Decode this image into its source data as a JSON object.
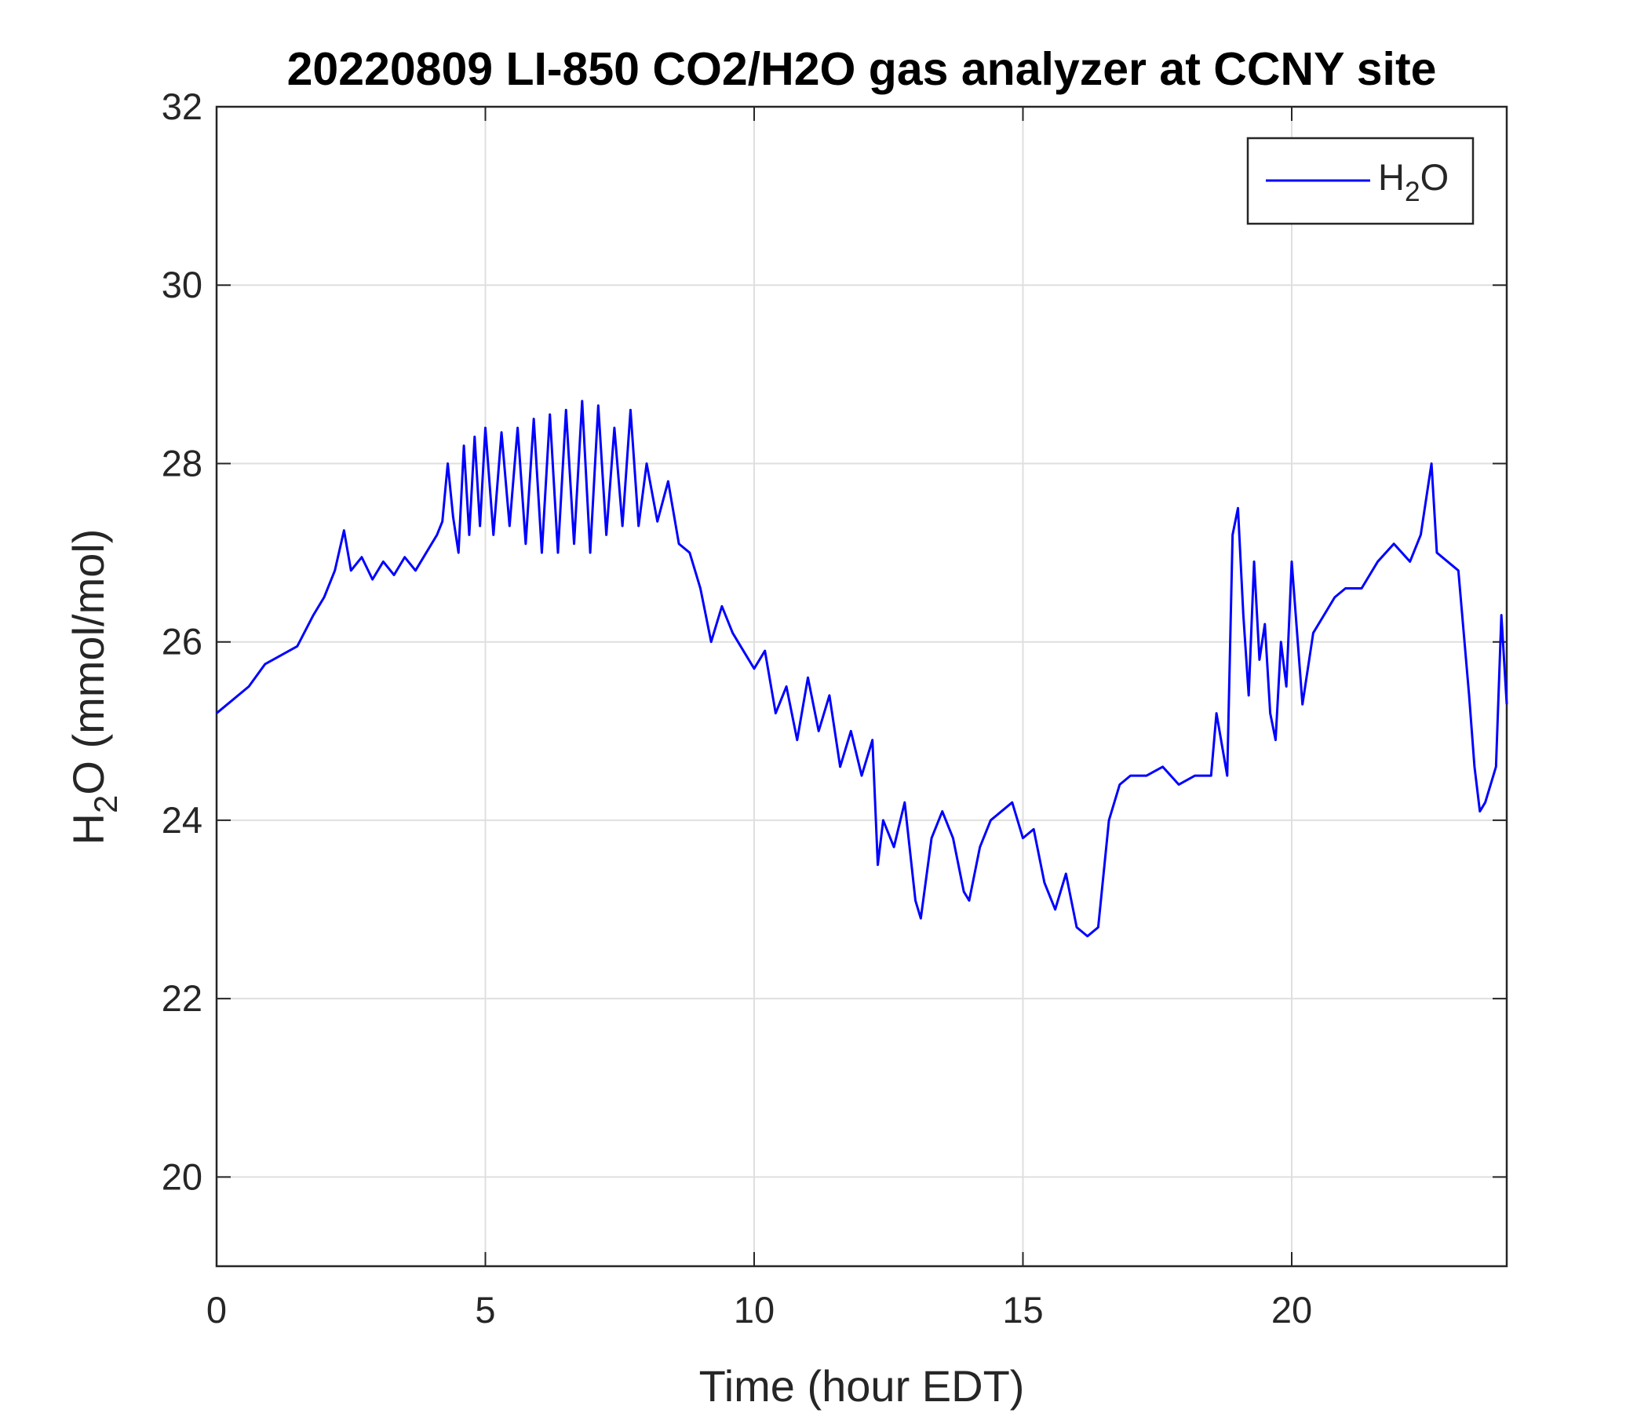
{
  "chart_data": {
    "type": "line",
    "title": "20220809 LI-850 CO2/H2O gas analyzer at CCNY site",
    "xlabel": "Time (hour EDT)",
    "ylabel": "H2O (mmol/mol)",
    "xlim": [
      0,
      24
    ],
    "xticks": [
      0,
      5,
      10,
      15,
      20
    ],
    "ylim": [
      19,
      32
    ],
    "yticks": [
      20,
      22,
      24,
      26,
      28,
      30,
      32
    ],
    "grid": true,
    "legend": "upper right",
    "x": [
      0,
      0.3,
      0.6,
      0.9,
      1.2,
      1.5,
      1.8,
      2.0,
      2.2,
      2.37,
      2.5,
      2.7,
      2.9,
      3.1,
      3.3,
      3.5,
      3.7,
      3.9,
      4.1,
      4.2,
      4.3,
      4.4,
      4.5,
      4.6,
      4.7,
      4.8,
      4.9,
      5.0,
      5.15,
      5.3,
      5.45,
      5.6,
      5.75,
      5.9,
      6.05,
      6.2,
      6.35,
      6.5,
      6.65,
      6.8,
      6.95,
      7.1,
      7.25,
      7.4,
      7.55,
      7.7,
      7.85,
      8.0,
      8.2,
      8.4,
      8.6,
      8.8,
      9.0,
      9.2,
      9.4,
      9.6,
      9.8,
      10.0,
      10.2,
      10.4,
      10.6,
      10.8,
      11.0,
      11.2,
      11.4,
      11.6,
      11.8,
      12.0,
      12.2,
      12.3,
      12.4,
      12.6,
      12.8,
      13.0,
      13.1,
      13.3,
      13.5,
      13.7,
      13.9,
      14.0,
      14.2,
      14.4,
      14.6,
      14.8,
      15.0,
      15.2,
      15.4,
      15.6,
      15.8,
      16.0,
      16.2,
      16.4,
      16.6,
      16.8,
      17.0,
      17.3,
      17.6,
      17.9,
      18.2,
      18.5,
      18.6,
      18.8,
      18.9,
      19.0,
      19.1,
      19.2,
      19.3,
      19.4,
      19.5,
      19.6,
      19.7,
      19.8,
      19.9,
      20.0,
      20.2,
      20.4,
      20.6,
      20.8,
      21.0,
      21.3,
      21.6,
      21.9,
      22.2,
      22.4,
      22.6,
      22.7,
      22.9,
      23.1,
      23.3,
      23.4,
      23.5,
      23.6,
      23.8,
      23.9,
      24.0
    ],
    "series": [
      {
        "name": "H2O",
        "color": "#0000ff",
        "values": [
          25.2,
          25.35,
          25.5,
          25.75,
          25.85,
          25.95,
          26.3,
          26.5,
          26.8,
          27.25,
          26.8,
          26.95,
          26.7,
          26.9,
          26.75,
          26.95,
          26.8,
          27.0,
          27.2,
          27.35,
          28.0,
          27.4,
          27.0,
          28.2,
          27.2,
          28.3,
          27.3,
          28.4,
          27.2,
          28.35,
          27.3,
          28.4,
          27.1,
          28.5,
          27.0,
          28.55,
          27.0,
          28.6,
          27.1,
          28.7,
          27.0,
          28.65,
          27.2,
          28.4,
          27.3,
          28.6,
          27.3,
          28.0,
          27.35,
          27.8,
          27.1,
          27.0,
          26.6,
          26.0,
          26.4,
          26.1,
          25.9,
          25.7,
          25.9,
          25.2,
          25.5,
          24.9,
          25.6,
          25.0,
          25.4,
          24.6,
          25.0,
          24.5,
          24.9,
          23.5,
          24.0,
          23.7,
          24.2,
          23.1,
          22.9,
          23.8,
          24.1,
          23.8,
          23.2,
          23.1,
          23.7,
          24.0,
          24.1,
          24.2,
          23.8,
          23.9,
          23.3,
          23.0,
          23.4,
          22.8,
          22.7,
          22.8,
          24.0,
          24.4,
          24.5,
          24.5,
          24.6,
          24.4,
          24.5,
          24.5,
          25.2,
          24.5,
          27.2,
          27.5,
          26.3,
          25.4,
          26.9,
          25.8,
          26.2,
          25.2,
          24.9,
          26.0,
          25.5,
          26.9,
          25.3,
          26.1,
          26.3,
          26.5,
          26.6,
          26.6,
          26.9,
          27.1,
          26.9,
          27.2,
          28.0,
          27.0,
          26.9,
          26.8,
          25.4,
          24.6,
          24.1,
          24.2,
          24.6,
          26.3,
          25.3
        ]
      }
    ]
  }
}
